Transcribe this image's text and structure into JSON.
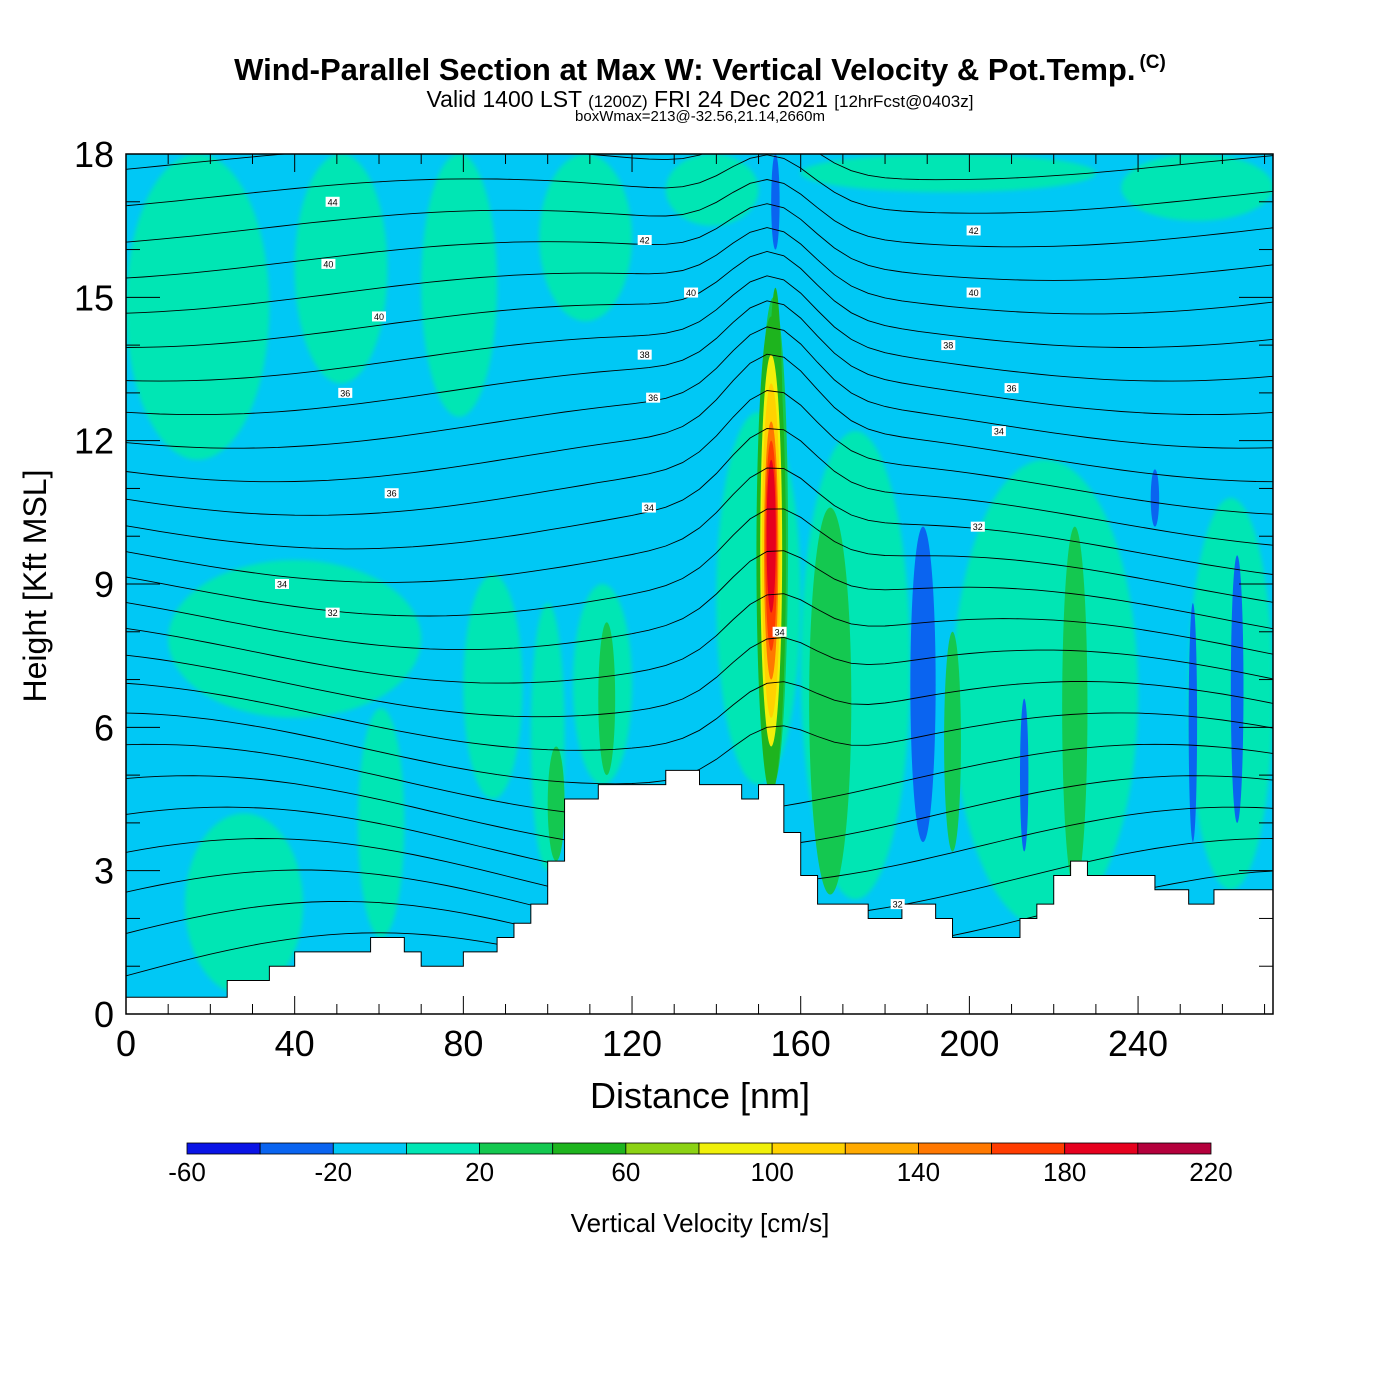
{
  "title": {
    "main": "Wind-Parallel Section at Max W: Vertical Velocity & Pot.Temp.",
    "mark": "(C)",
    "valid_prefix": "Valid 1400 LST",
    "valid_z": "(1200Z)",
    "valid_date": "FRI 24 Dec 2021",
    "forecast": "[12hrFcst@0403z]",
    "box_wmax": "boxWmax=213@-32.56,21.14,2660m"
  },
  "chart_data": {
    "type": "heatmap",
    "xlabel": "Distance [nm]",
    "ylabel": "Height [Kft MSL]",
    "xlim": [
      0,
      272
    ],
    "ylim": [
      0,
      18
    ],
    "x_ticks": [
      0,
      40,
      80,
      120,
      160,
      200,
      240
    ],
    "y_ticks": [
      0,
      3,
      6,
      9,
      12,
      15,
      18
    ],
    "colorbar": {
      "label": "Vertical Velocity [cm/s]",
      "bounds": [
        -60,
        -40,
        -20,
        0,
        20,
        40,
        60,
        80,
        100,
        120,
        140,
        160,
        180,
        200,
        220
      ],
      "tick_labels": [
        "-60",
        "-20",
        "20",
        "60",
        "100",
        "140",
        "180",
        "220"
      ],
      "colors": [
        "#0a14e6",
        "#0a64f0",
        "#00c8f5",
        "#00e6b4",
        "#14c850",
        "#1eb41e",
        "#8cd214",
        "#f0f00a",
        "#ffd200",
        "#ffaa00",
        "#ff7800",
        "#ff3c00",
        "#e6001e",
        "#b4003c"
      ]
    },
    "terrain": [
      [
        0,
        0.35
      ],
      [
        10,
        0.35
      ],
      [
        20,
        0.35
      ],
      [
        24,
        0.7
      ],
      [
        34,
        1.0
      ],
      [
        40,
        1.3
      ],
      [
        50,
        1.3
      ],
      [
        58,
        1.6
      ],
      [
        62,
        1.6
      ],
      [
        66,
        1.3
      ],
      [
        70,
        1.0
      ],
      [
        76,
        1.0
      ],
      [
        80,
        1.3
      ],
      [
        88,
        1.6
      ],
      [
        92,
        1.9
      ],
      [
        96,
        2.3
      ],
      [
        100,
        3.2
      ],
      [
        104,
        4.5
      ],
      [
        112,
        4.8
      ],
      [
        120,
        4.8
      ],
      [
        128,
        5.1
      ],
      [
        136,
        4.8
      ],
      [
        140,
        4.8
      ],
      [
        146,
        4.5
      ],
      [
        150,
        4.8
      ],
      [
        154,
        4.8
      ],
      [
        156,
        3.8
      ],
      [
        160,
        2.9
      ],
      [
        164,
        2.3
      ],
      [
        170,
        2.3
      ],
      [
        176,
        2.0
      ],
      [
        184,
        2.3
      ],
      [
        188,
        2.3
      ],
      [
        192,
        2.0
      ],
      [
        196,
        1.6
      ],
      [
        208,
        1.6
      ],
      [
        212,
        2.0
      ],
      [
        216,
        2.3
      ],
      [
        220,
        2.9
      ],
      [
        224,
        3.2
      ],
      [
        228,
        2.9
      ],
      [
        240,
        2.9
      ],
      [
        244,
        2.6
      ],
      [
        252,
        2.3
      ],
      [
        258,
        2.6
      ],
      [
        272,
        2.6
      ]
    ],
    "updraft_max": {
      "x": 153,
      "y": 10,
      "value": 213
    },
    "contour_labels": [
      {
        "text": "44",
        "x": 49,
        "y": 17.0
      },
      {
        "text": "42",
        "x": 123,
        "y": 16.2
      },
      {
        "text": "42",
        "x": 201,
        "y": 16.4
      },
      {
        "text": "40",
        "x": 48,
        "y": 15.7
      },
      {
        "text": "40",
        "x": 134,
        "y": 15.1
      },
      {
        "text": "40",
        "x": 201,
        "y": 15.1
      },
      {
        "text": "40",
        "x": 60,
        "y": 14.6
      },
      {
        "text": "38",
        "x": 123,
        "y": 13.8
      },
      {
        "text": "38",
        "x": 195,
        "y": 14.0
      },
      {
        "text": "36",
        "x": 52,
        "y": 13.0
      },
      {
        "text": "36",
        "x": 125,
        "y": 12.9
      },
      {
        "text": "36",
        "x": 210,
        "y": 13.1
      },
      {
        "text": "34",
        "x": 207,
        "y": 12.2
      },
      {
        "text": "36",
        "x": 63,
        "y": 10.9
      },
      {
        "text": "34",
        "x": 124,
        "y": 10.6
      },
      {
        "text": "32",
        "x": 202,
        "y": 10.2
      },
      {
        "text": "34",
        "x": 37,
        "y": 9.0
      },
      {
        "text": "32",
        "x": 49,
        "y": 8.4
      },
      {
        "text": "34",
        "x": 155,
        "y": 8.0
      },
      {
        "text": "32",
        "x": 183,
        "y": 2.3
      }
    ]
  }
}
